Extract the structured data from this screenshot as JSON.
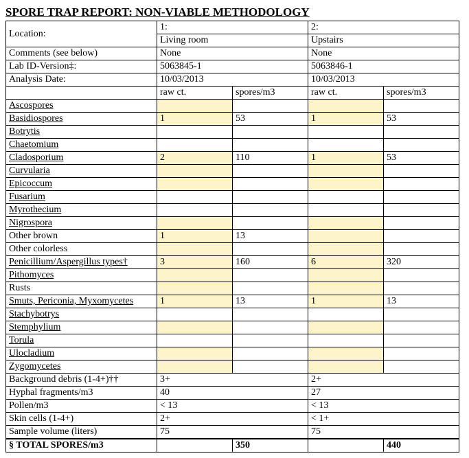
{
  "title": "SPORE TRAP REPORT: NON-VIABLE METHODOLOGY",
  "header_labels": {
    "location": "Location:",
    "comments": "Comments (see below)",
    "lab_id": "Lab ID-Version‡:",
    "analysis_date": "Analysis Date:"
  },
  "col_headers": {
    "raw": "raw ct.",
    "spores": "spores/m3"
  },
  "locations": [
    {
      "num": "1:",
      "name": "Living room",
      "comments": "None",
      "lab_id": "5063845-1",
      "date": "10/03/2013"
    },
    {
      "num": "2:",
      "name": "Upstairs",
      "comments": "None",
      "lab_id": "5063846-1",
      "date": "10/03/2013"
    }
  ],
  "spore_rows": [
    {
      "label": "Ascospores",
      "underline": true,
      "hl": true,
      "v": [
        "",
        "",
        "",
        ""
      ]
    },
    {
      "label": "Basidiospores",
      "underline": true,
      "hl": true,
      "v": [
        "1",
        "53",
        "1",
        "53"
      ]
    },
    {
      "label": "Botrytis",
      "underline": true,
      "hl": false,
      "v": [
        "",
        "",
        "",
        ""
      ]
    },
    {
      "label": "Chaetomium",
      "underline": true,
      "hl": false,
      "v": [
        "",
        "",
        "",
        ""
      ]
    },
    {
      "label": "Cladosporium",
      "underline": true,
      "hl": true,
      "v": [
        "2",
        "110",
        "1",
        "53"
      ]
    },
    {
      "label": "Curvularia",
      "underline": true,
      "hl": true,
      "v": [
        "",
        "",
        "",
        ""
      ]
    },
    {
      "label": "Epicoccum",
      "underline": true,
      "hl": true,
      "v": [
        "",
        "",
        "",
        ""
      ]
    },
    {
      "label": "Fusarium",
      "underline": true,
      "hl": false,
      "v": [
        "",
        "",
        "",
        ""
      ]
    },
    {
      "label": "Myrothecium",
      "underline": true,
      "hl": false,
      "v": [
        "",
        "",
        "",
        ""
      ]
    },
    {
      "label": "Nigrospora",
      "underline": true,
      "hl": true,
      "v": [
        "",
        "",
        "",
        ""
      ]
    },
    {
      "label": "Other brown",
      "underline": false,
      "hl": true,
      "v": [
        "1",
        "13",
        "",
        ""
      ]
    },
    {
      "label": "Other colorless",
      "underline": false,
      "hl": true,
      "v": [
        "",
        "",
        "",
        ""
      ]
    },
    {
      "label": "Penicillium/Aspergillus types†",
      "underline": true,
      "hl": true,
      "v": [
        "3",
        "160",
        "6",
        "320"
      ]
    },
    {
      "label": "Pithomyces",
      "underline": true,
      "hl": true,
      "v": [
        "",
        "",
        "",
        ""
      ]
    },
    {
      "label": "Rusts",
      "underline": false,
      "hl": true,
      "v": [
        "",
        "",
        "",
        ""
      ]
    },
    {
      "label": "Smuts, Periconia, Myxomycetes",
      "underline": true,
      "hl": true,
      "v": [
        "1",
        "13",
        "1",
        "13"
      ]
    },
    {
      "label": "Stachybotrys",
      "underline": true,
      "hl": false,
      "v": [
        "",
        "",
        "",
        ""
      ]
    },
    {
      "label": "Stemphylium",
      "underline": true,
      "hl": true,
      "v": [
        "",
        "",
        "",
        ""
      ]
    },
    {
      "label": "Torula",
      "underline": true,
      "hl": false,
      "v": [
        "",
        "",
        "",
        ""
      ]
    },
    {
      "label": "Ulocladium",
      "underline": true,
      "hl": true,
      "v": [
        "",
        "",
        "",
        ""
      ]
    },
    {
      "label": "Zygomycetes",
      "underline": true,
      "hl": true,
      "v": [
        "",
        "",
        "",
        ""
      ]
    }
  ],
  "footer_rows": [
    {
      "label": "Background debris (1-4+)††",
      "v": [
        "3+",
        "",
        "2+",
        ""
      ]
    },
    {
      "label": "Hyphal fragments/m3",
      "v": [
        "40",
        "",
        "27",
        ""
      ]
    },
    {
      "label": "Pollen/m3",
      "v": [
        "< 13",
        "",
        "< 13",
        ""
      ]
    },
    {
      "label": "Skin cells (1-4+)",
      "v": [
        "2+",
        "",
        "< 1+",
        ""
      ]
    },
    {
      "label": "Sample volume (liters)",
      "v": [
        "75",
        "",
        "75",
        ""
      ]
    }
  ],
  "total": {
    "label": "§ TOTAL SPORES/m3",
    "v": [
      "",
      "350",
      "",
      "440"
    ]
  },
  "colors": {
    "highlight": "#fdf5c9",
    "border": "#000000",
    "background": "#ffffff"
  }
}
